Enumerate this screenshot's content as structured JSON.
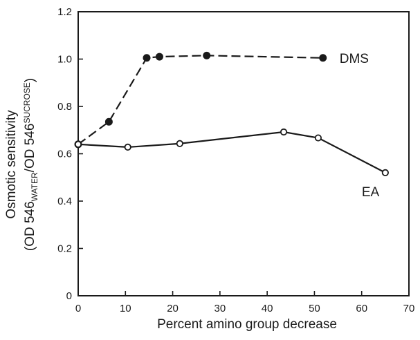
{
  "chart_data": {
    "type": "line",
    "title": "",
    "xlabel": "Percent amino group decrease",
    "ylabel": {
      "line1": "Osmotic sensitivity",
      "line2_prefix": "(OD 546",
      "line2_sub1": "WATER",
      "line2_mid": "/OD 546",
      "line2_sub2": "SUCROSE",
      "line2_suffix": ")"
    },
    "xlim": [
      0,
      70
    ],
    "ylim": [
      0,
      1.2
    ],
    "x_ticks": [
      0,
      10,
      20,
      30,
      40,
      50,
      60,
      70
    ],
    "x_tick_labels": [
      "0",
      "10",
      "20",
      "30",
      "40",
      "50",
      "60",
      "70"
    ],
    "y_ticks": [
      0,
      0.2,
      0.4,
      0.6,
      0.8,
      1.0,
      1.2
    ],
    "y_tick_labels": [
      "0",
      "0.2",
      "0.4",
      "0.6",
      "0.8",
      "1.0",
      "1.2"
    ],
    "grid": false,
    "series": [
      {
        "name": "DMS",
        "marker": "filled-circle",
        "line_style": "dashed",
        "label_anchor": "right-of-last-point",
        "x": [
          0,
          6.5,
          14.5,
          17.2,
          27.2,
          51.8
        ],
        "y": [
          0.64,
          0.735,
          1.005,
          1.01,
          1.015,
          1.005
        ]
      },
      {
        "name": "EA",
        "marker": "open-circle",
        "line_style": "solid",
        "label_anchor": "below-left-of-last-point",
        "x": [
          0,
          10.5,
          21.5,
          43.5,
          50.8,
          65
        ],
        "y": [
          0.64,
          0.628,
          0.643,
          0.692,
          0.667,
          0.52
        ]
      }
    ],
    "colors": {
      "ink": "#1a1a1a",
      "background": "#ffffff"
    }
  }
}
